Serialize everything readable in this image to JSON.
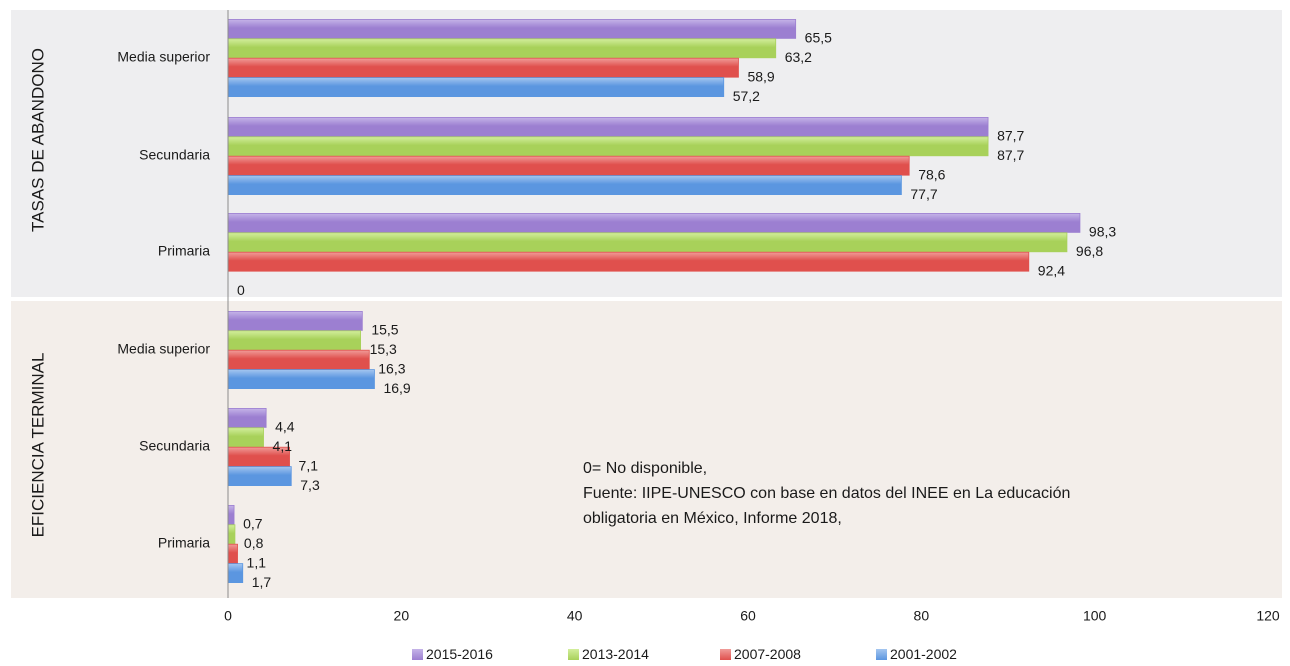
{
  "chart_data": {
    "type": "bar",
    "orientation": "horizontal",
    "xlim": [
      0,
      120
    ],
    "x_ticks": [
      "0",
      "20",
      "40",
      "60",
      "80",
      "100",
      "120"
    ],
    "grid": false,
    "legend_position": "bottom",
    "groups": [
      {
        "label": "TASAS DE ABANDONO",
        "background": "#eeeef0",
        "categories": [
          {
            "label": "Media superior",
            "values": [
              {
                "value": 65.5,
                "label": "65,5"
              },
              {
                "value": 63.2,
                "label": "63,2"
              },
              {
                "value": 58.9,
                "label": "58,9"
              },
              {
                "value": 57.2,
                "label": "57,2"
              }
            ]
          },
          {
            "label": "Secundaria",
            "values": [
              {
                "value": 87.7,
                "label": "87,7"
              },
              {
                "value": 87.7,
                "label": "87,7"
              },
              {
                "value": 78.6,
                "label": "78,6"
              },
              {
                "value": 77.7,
                "label": "77,7"
              }
            ]
          },
          {
            "label": "Primaria",
            "values": [
              {
                "value": 98.3,
                "label": "98,3"
              },
              {
                "value": 96.8,
                "label": "96,8"
              },
              {
                "value": 92.4,
                "label": "92,4"
              },
              {
                "value": 0,
                "label": "0"
              }
            ]
          }
        ]
      },
      {
        "label": "EFICIENCIA TERMINAL",
        "background": "#f3eeea",
        "categories": [
          {
            "label": "Media superior",
            "values": [
              {
                "value": 15.5,
                "label": "15,5"
              },
              {
                "value": 15.3,
                "label": "15,3"
              },
              {
                "value": 16.3,
                "label": "16,3"
              },
              {
                "value": 16.9,
                "label": "16,9"
              }
            ]
          },
          {
            "label": "Secundaria",
            "values": [
              {
                "value": 4.4,
                "label": "4,4"
              },
              {
                "value": 4.1,
                "label": "4,1"
              },
              {
                "value": 7.1,
                "label": "7,1"
              },
              {
                "value": 7.3,
                "label": "7,3"
              }
            ]
          },
          {
            "label": "Primaria",
            "values": [
              {
                "value": 0.7,
                "label": "0,7"
              },
              {
                "value": 0.8,
                "label": "0,8"
              },
              {
                "value": 1.1,
                "label": "1,1"
              },
              {
                "value": 1.7,
                "label": "1,7"
              }
            ]
          }
        ]
      }
    ],
    "series": [
      {
        "name": "2015-2016",
        "color": "#9c7fd1",
        "color_light": "#c5b4e8"
      },
      {
        "name": "2013-2014",
        "color": "#a8d15a",
        "color_light": "#d3ee9c"
      },
      {
        "name": "2007-2008",
        "color": "#e0504d",
        "color_light": "#f09c99"
      },
      {
        "name": "2001-2002",
        "color": "#5b96e0",
        "color_light": "#a4c6f0"
      }
    ],
    "annotation": [
      "0= No disponible,",
      "Fuente: IIPE-UNESCO con base en datos del INEE en La educación obligatoria en México, Informe 2018,"
    ]
  }
}
